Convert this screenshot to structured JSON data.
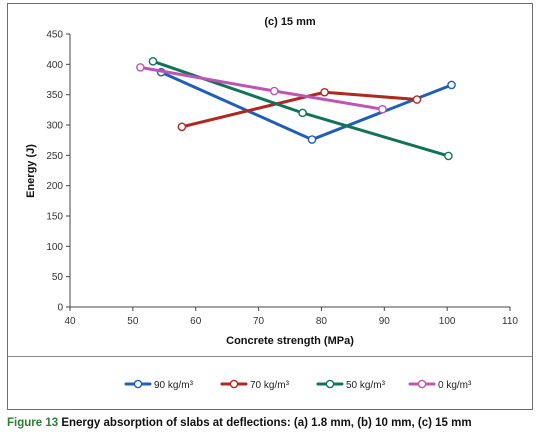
{
  "chart_data": {
    "type": "line",
    "title": "(c) 15 mm",
    "xlabel": "Concrete strength (MPa)",
    "ylabel": "Energy (J)",
    "xlim": [
      40,
      110
    ],
    "ylim": [
      0,
      450
    ],
    "xticks": [
      "40",
      "50",
      "60",
      "70",
      "80",
      "90",
      "100",
      "110"
    ],
    "yticks": [
      "0",
      "50",
      "100",
      "150",
      "200",
      "250",
      "300",
      "350",
      "400",
      "450"
    ],
    "grid": "none",
    "legend_placement": "bottom",
    "series": [
      {
        "name": "90 kg/m³",
        "color": "#1f5fb8",
        "points": [
          [
            54.5,
            387
          ],
          [
            78.5,
            276
          ],
          [
            100.7,
            366
          ]
        ]
      },
      {
        "name": "70 kg/m³",
        "color": "#b0281e",
        "points": [
          [
            57.8,
            297
          ],
          [
            80.5,
            354
          ],
          [
            95.2,
            342
          ]
        ]
      },
      {
        "name": "50 kg/m³",
        "color": "#11735a",
        "points": [
          [
            53.2,
            405
          ],
          [
            77,
            320
          ],
          [
            100.2,
            249
          ]
        ]
      },
      {
        "name": "0 kg/m³",
        "color": "#c054b4",
        "points": [
          [
            51.2,
            395
          ],
          [
            72.5,
            356
          ],
          [
            89.7,
            326
          ]
        ]
      }
    ]
  },
  "caption": {
    "label": "Figure 13",
    "text": " Energy absorption of slabs at deflections: (a) 1.8 mm, (b) 10 mm, (c) 15 mm"
  }
}
